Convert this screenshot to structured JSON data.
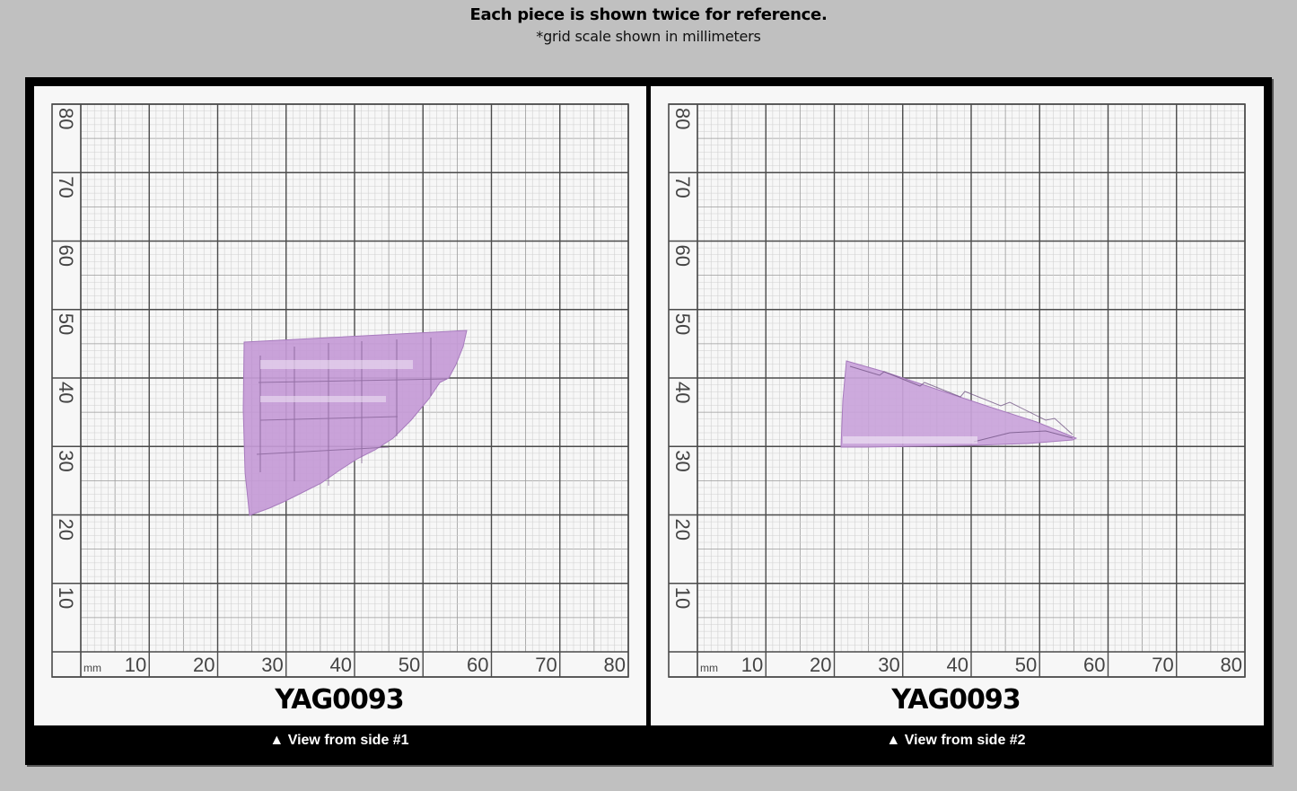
{
  "header": {
    "title": "Each piece is shown twice for reference.",
    "subtitle": "*grid scale shown in millimeters"
  },
  "panels": [
    {
      "piece_id": "YAG0093",
      "caption_icon": "triangle-up-icon",
      "caption": "▲ View from side #1",
      "x_axis": {
        "unit": "mm",
        "ticks": [
          "10",
          "20",
          "30",
          "40",
          "50",
          "60",
          "70",
          "80"
        ]
      },
      "y_axis": {
        "ticks": [
          "80",
          "70",
          "60",
          "50",
          "40",
          "30",
          "20",
          "10"
        ]
      },
      "gem_color": "#c49ad6"
    },
    {
      "piece_id": "YAG0093",
      "caption_icon": "triangle-up-icon",
      "caption": "▲ View from side #2",
      "x_axis": {
        "unit": "mm",
        "ticks": [
          "10",
          "20",
          "30",
          "40",
          "50",
          "60",
          "70",
          "80"
        ]
      },
      "y_axis": {
        "ticks": [
          "80",
          "70",
          "60",
          "50",
          "40",
          "30",
          "20",
          "10"
        ]
      },
      "gem_color": "#c9a3da"
    }
  ],
  "colors": {
    "background": "#c0c0c0",
    "frame": "#000000",
    "panel": "#f7f7f7",
    "grid_major": "#555555",
    "grid_minor": "#c8c8c8",
    "gem": "#c49ad6"
  }
}
